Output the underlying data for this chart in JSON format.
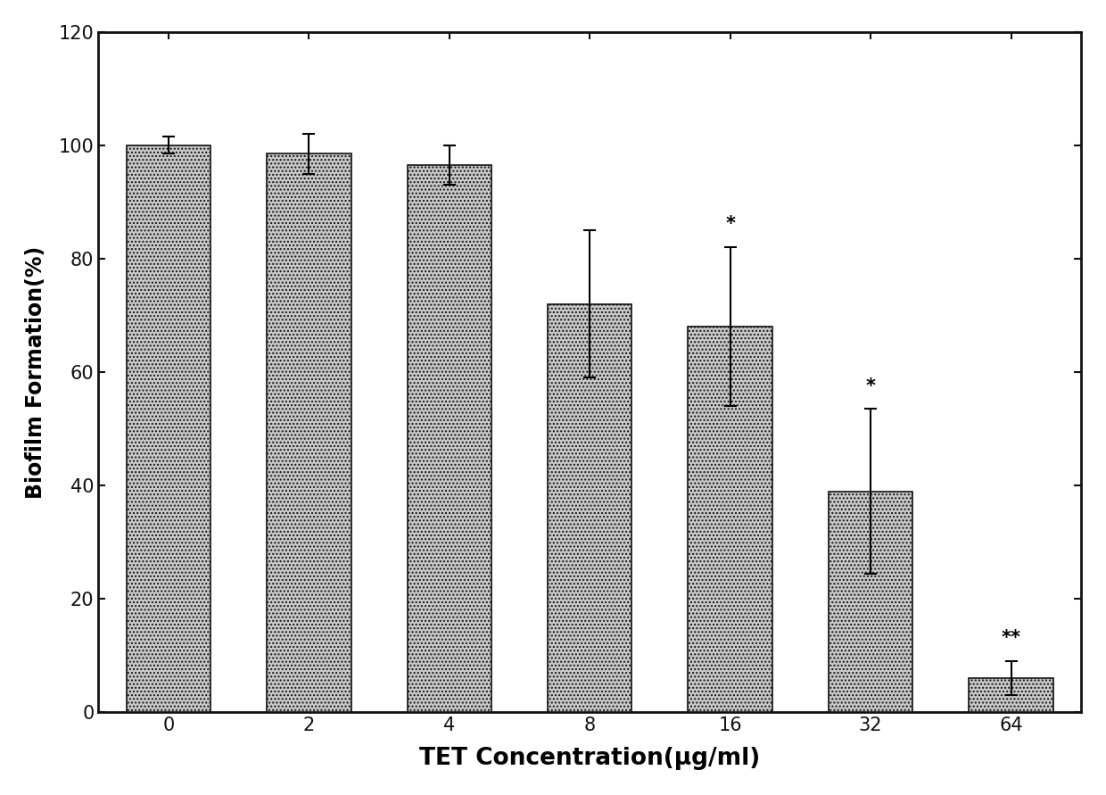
{
  "categories": [
    "0",
    "2",
    "4",
    "8",
    "16",
    "32",
    "64"
  ],
  "values": [
    100.0,
    98.5,
    96.5,
    72.0,
    68.0,
    39.0,
    6.0
  ],
  "errors": [
    1.5,
    3.5,
    3.5,
    13.0,
    14.0,
    14.5,
    3.0
  ],
  "bar_color": "#c8c8c8",
  "bar_edgecolor": "#111111",
  "bar_hatch": "....",
  "xlabel": "TET Concentration(μg/ml)",
  "ylabel": "Biofilm Formation(%)",
  "ylim": [
    0,
    120
  ],
  "yticks": [
    0,
    20,
    40,
    60,
    80,
    100,
    120
  ],
  "significance": [
    "",
    "",
    "",
    "",
    "*",
    "*",
    "**"
  ],
  "background_color": "#ffffff",
  "axis_fontsize": 17,
  "tick_fontsize": 15,
  "xlabel_fontsize": 19,
  "ylabel_fontsize": 17
}
